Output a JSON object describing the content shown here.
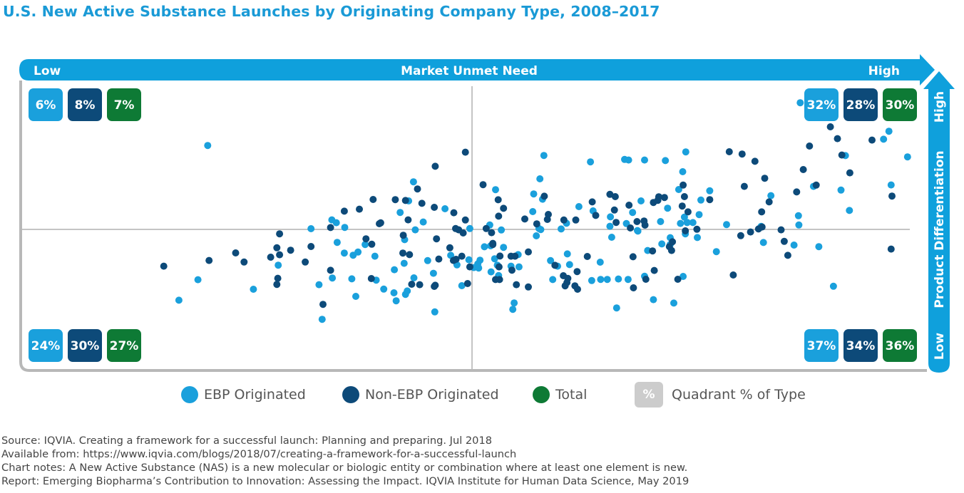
{
  "title": "U.S. New Active Substance Launches by Originating Company Type, 2008–2017",
  "colors": {
    "ebp": "#1aa0dc",
    "non_ebp": "#0d4a79",
    "total": "#0e7a35",
    "arrow": "#0fa0dc",
    "frame": "#b8b8b8",
    "legend_box": "#cccccc"
  },
  "chart_data": {
    "type": "scatter",
    "xlabel": "Market Unmet Need",
    "ylabel": "Product Differentiation",
    "x_low_label": "Low",
    "x_high_label": "High",
    "y_low_label": "Low",
    "y_high_label": "High",
    "xlim": [
      -1,
      1
    ],
    "ylim": [
      -1,
      1
    ],
    "series": [
      {
        "name": "EBP Originated",
        "color": "#1aa0dc",
        "points": [
          [
            -0.596,
            0.589
          ],
          [
            -0.618,
            -0.353
          ],
          [
            -0.661,
            -0.497
          ],
          [
            -0.493,
            -0.42
          ],
          [
            -0.437,
            -0.251
          ],
          [
            -0.363,
            0.005
          ],
          [
            -0.345,
            -0.388
          ],
          [
            -0.338,
            -0.631
          ],
          [
            -0.315,
            -0.341
          ],
          [
            -0.304,
            -0.091
          ],
          [
            -0.316,
            0.067
          ],
          [
            -0.306,
            0.047
          ],
          [
            -0.257,
            -0.159
          ],
          [
            -0.268,
            -0.181
          ],
          [
            -0.287,
            0.014
          ],
          [
            -0.288,
            -0.166
          ],
          [
            -0.271,
            -0.347
          ],
          [
            -0.262,
            -0.47
          ],
          [
            -0.241,
            -0.106
          ],
          [
            -0.216,
            -0.356
          ],
          [
            -0.219,
            -0.188
          ],
          [
            -0.199,
            -0.419
          ],
          [
            -0.171,
            -0.501
          ],
          [
            -0.162,
            0.119
          ],
          [
            -0.175,
            -0.283
          ],
          [
            -0.176,
            -0.445
          ],
          [
            -0.153,
            -0.238
          ],
          [
            -0.15,
            -0.456
          ],
          [
            -0.143,
            0.2
          ],
          [
            -0.131,
            -0.34
          ],
          [
            -0.146,
            -0.432
          ],
          [
            -0.132,
            0.334
          ],
          [
            -0.1,
            -0.219
          ],
          [
            -0.11,
            0.052
          ],
          [
            -0.128,
            -0.003
          ],
          [
            -0.152,
            -0.072
          ],
          [
            -0.084,
            -0.579
          ],
          [
            -0.087,
            -0.308
          ],
          [
            -0.061,
            0.145
          ],
          [
            -0.048,
            -0.182
          ],
          [
            -0.034,
            -0.249
          ],
          [
            -0.023,
            -0.395
          ],
          [
            -0.007,
            -0.213
          ],
          [
            -0.005,
            0.006
          ],
          [
            0.004,
            -0.268
          ],
          [
            0.013,
            -0.242
          ],
          [
            0.015,
            -0.271
          ],
          [
            0.018,
            -0.216
          ],
          [
            0.028,
            -0.122
          ],
          [
            0.042,
            -0.115
          ],
          [
            0.053,
            0.279
          ],
          [
            0.043,
            -0.298
          ],
          [
            0.051,
            -0.206
          ],
          [
            0.057,
            -0.251
          ],
          [
            0.04,
            0.031
          ],
          [
            0.06,
            -0.324
          ],
          [
            0.071,
            -0.126
          ],
          [
            0.066,
            -0.004
          ],
          [
            0.088,
            -0.258
          ],
          [
            0.092,
            -0.561
          ],
          [
            0.095,
            -0.516
          ],
          [
            0.104,
            -0.177
          ],
          [
            0.106,
            -0.263
          ],
          [
            0.137,
            0.125
          ],
          [
            0.139,
            0.249
          ],
          [
            0.145,
            -0.045
          ],
          [
            0.151,
            0.006
          ],
          [
            0.153,
            0.355
          ],
          [
            0.155,
            -0.001
          ],
          [
            0.159,
            0.212
          ],
          [
            0.162,
            0.519
          ],
          [
            0.177,
            -0.219
          ],
          [
            0.182,
            -0.352
          ],
          [
            0.193,
            -0.258
          ],
          [
            0.201,
            0.003
          ],
          [
            0.213,
            0.043
          ],
          [
            0.215,
            -0.172
          ],
          [
            0.22,
            -0.247
          ],
          [
            0.241,
            0.16
          ],
          [
            0.27,
            -0.359
          ],
          [
            0.267,
            0.474
          ],
          [
            0.273,
            0.13
          ],
          [
            0.289,
            -0.23
          ],
          [
            0.29,
            -0.351
          ],
          [
            0.305,
            -0.351
          ],
          [
            0.311,
            0.022
          ],
          [
            0.312,
            0.088
          ],
          [
            0.315,
            -0.055
          ],
          [
            0.326,
            -0.551
          ],
          [
            0.33,
            -0.348
          ],
          [
            0.344,
            0.491
          ],
          [
            0.348,
            0.041
          ],
          [
            0.352,
            -0.351
          ],
          [
            0.353,
            0.487
          ],
          [
            0.362,
            0.119
          ],
          [
            0.373,
            -0.008
          ],
          [
            0.374,
            -0.012
          ],
          [
            0.381,
            0.2
          ],
          [
            0.389,
            -0.329
          ],
          [
            0.389,
            0.487
          ],
          [
            0.396,
            -0.148
          ],
          [
            0.409,
            -0.493
          ],
          [
            0.425,
            0.055
          ],
          [
            0.428,
            -0.102
          ],
          [
            0.436,
            0.483
          ],
          [
            0.447,
            -0.058
          ],
          [
            0.441,
            0.149
          ],
          [
            0.447,
            -0.106
          ],
          [
            0.455,
            -0.517
          ],
          [
            0.466,
            0.28
          ],
          [
            0.47,
            0.042
          ],
          [
            0.476,
            -0.33
          ],
          [
            0.481,
            -0.031
          ],
          [
            0.479,
            0.086
          ],
          [
            0.485,
            0.048
          ],
          [
            0.485,
            0.049
          ],
          [
            0.475,
            0.405
          ],
          [
            0.482,
            0.544
          ],
          [
            0.498,
            0.048
          ],
          [
            0.508,
            -0.057
          ],
          [
            0.512,
            0.104
          ],
          [
            0.516,
            0.206
          ],
          [
            0.536,
            0.271
          ],
          [
            0.551,
            -0.156
          ],
          [
            0.574,
            0.034
          ],
          [
            0.657,
            -0.092
          ],
          [
            0.652,
            0.021
          ],
          [
            0.674,
            0.237
          ],
          [
            0.726,
            -0.11
          ],
          [
            0.737,
            0.031
          ],
          [
            0.736,
            0.096
          ],
          [
            0.77,
            0.302
          ],
          [
            0.782,
            -0.121
          ],
          [
            0.815,
            -0.399
          ],
          [
            0.832,
            0.276
          ],
          [
            0.842,
            0.518
          ],
          [
            0.851,
            0.133
          ],
          [
            0.928,
            0.633
          ],
          [
            0.94,
            0.689
          ],
          [
            0.945,
            0.312
          ],
          [
            0.982,
            0.509
          ],
          [
            0.74,
            0.889
          ]
        ]
      },
      {
        "name": "Non-EBP Originated",
        "color": "#0d4a79",
        "points": [
          [
            -0.695,
            -0.258
          ],
          [
            -0.593,
            -0.218
          ],
          [
            -0.533,
            -0.165
          ],
          [
            -0.514,
            -0.229
          ],
          [
            -0.454,
            -0.195
          ],
          [
            -0.44,
            -0.129
          ],
          [
            -0.438,
            -0.343
          ],
          [
            -0.44,
            -0.386
          ],
          [
            -0.434,
            -0.178
          ],
          [
            -0.434,
            -0.031
          ],
          [
            -0.409,
            -0.146
          ],
          [
            -0.376,
            -0.229
          ],
          [
            -0.363,
            -0.12
          ],
          [
            -0.336,
            -0.526
          ],
          [
            -0.319,
            -0.287
          ],
          [
            -0.319,
            0.013
          ],
          [
            -0.288,
            0.128
          ],
          [
            -0.254,
            0.142
          ],
          [
            -0.239,
            -0.066
          ],
          [
            -0.227,
            -0.345
          ],
          [
            -0.226,
            -0.104
          ],
          [
            -0.223,
            0.21
          ],
          [
            -0.209,
            0.04
          ],
          [
            -0.206,
            0.046
          ],
          [
            -0.173,
            0.209
          ],
          [
            -0.155,
            -0.041
          ],
          [
            -0.156,
            -0.166
          ],
          [
            -0.15,
            0.203
          ],
          [
            -0.144,
            0.067
          ],
          [
            -0.141,
            -0.177
          ],
          [
            -0.136,
            -0.385
          ],
          [
            -0.123,
            0.284
          ],
          [
            -0.113,
            0.183
          ],
          [
            -0.118,
            -0.388
          ],
          [
            -0.08,
            -0.066
          ],
          [
            -0.083,
            -0.392
          ],
          [
            -0.085,
            0.155
          ],
          [
            -0.083,
            0.443
          ],
          [
            -0.085,
            -0.4
          ],
          [
            -0.075,
            -0.208
          ],
          [
            -0.05,
            -0.129
          ],
          [
            -0.041,
            0.117
          ],
          [
            -0.042,
            -0.218
          ],
          [
            -0.03,
            -0.003
          ],
          [
            -0.02,
            -0.025
          ],
          [
            -0.036,
            -0.21
          ],
          [
            -0.015,
            0.542
          ],
          [
            -0.015,
            0.066
          ],
          [
            -0.005,
            -0.263
          ],
          [
            -0.01,
            -0.38
          ],
          [
            -0.023,
            -0.188
          ],
          [
            -0.037,
            0.006
          ],
          [
            0.025,
            0.314
          ],
          [
            0.032,
            0.006
          ],
          [
            0.044,
            -0.023
          ],
          [
            0.047,
            -0.098
          ],
          [
            0.047,
            -0.106
          ],
          [
            0.063,
            -0.187
          ],
          [
            0.062,
            -0.352
          ],
          [
            0.059,
            0.208
          ],
          [
            0.061,
            -0.263
          ],
          [
            0.053,
            -0.352
          ],
          [
            0.06,
            0.093
          ],
          [
            0.071,
            0.148
          ],
          [
            0.088,
            -0.188
          ],
          [
            0.097,
            -0.188
          ],
          [
            0.09,
            -0.286
          ],
          [
            0.1,
            -0.388
          ],
          [
            0.119,
            0.073
          ],
          [
            0.127,
            -0.404
          ],
          [
            0.127,
            -0.158
          ],
          [
            0.146,
            0.039
          ],
          [
            0.163,
            0.233
          ],
          [
            0.17,
            0.07
          ],
          [
            0.172,
            0.105
          ],
          [
            0.187,
            -0.252
          ],
          [
            0.207,
            0.066
          ],
          [
            0.206,
            -0.325
          ],
          [
            0.21,
            -0.396
          ],
          [
            0.216,
            -0.344
          ],
          [
            0.214,
            -0.373
          ],
          [
            0.232,
            -0.396
          ],
          [
            0.234,
            0.066
          ],
          [
            0.237,
            -0.296
          ],
          [
            0.238,
            -0.42
          ],
          [
            0.26,
            -0.19
          ],
          [
            0.271,
            0.193
          ],
          [
            0.279,
            0.098
          ],
          [
            0.311,
            0.246
          ],
          [
            0.321,
            0.136
          ],
          [
            0.323,
            0.23
          ],
          [
            0.325,
            0.049
          ],
          [
            0.354,
            0.17
          ],
          [
            0.357,
            0.01
          ],
          [
            0.363,
            -0.192
          ],
          [
            0.364,
            -0.41
          ],
          [
            0.372,
            0.055
          ],
          [
            0.388,
            0.059
          ],
          [
            0.39,
            0.03
          ],
          [
            0.392,
            -0.35
          ],
          [
            0.407,
            -0.151
          ],
          [
            0.409,
            0.189
          ],
          [
            0.411,
            -0.288
          ],
          [
            0.419,
            0.204
          ],
          [
            0.421,
            0.229
          ],
          [
            0.434,
            0.224
          ],
          [
            0.445,
            -0.121
          ],
          [
            0.45,
            -0.148
          ],
          [
            0.452,
            -0.087
          ],
          [
            0.464,
            -0.35
          ],
          [
            0.481,
            -0.01
          ],
          [
            0.479,
            0.23
          ],
          [
            0.476,
            0.311
          ],
          [
            0.474,
            0.164
          ],
          [
            0.487,
            0.123
          ],
          [
            0.507,
            0.001
          ],
          [
            0.536,
            0.209
          ],
          [
            0.58,
            0.545
          ],
          [
            0.609,
            0.529
          ],
          [
            0.589,
            -0.32
          ],
          [
            0.606,
            -0.044
          ],
          [
            0.614,
            0.302
          ],
          [
            0.628,
            -0.018
          ],
          [
            0.638,
            0.478
          ],
          [
            0.646,
            0.003
          ],
          [
            0.653,
            0.123
          ],
          [
            0.654,
            0.017
          ],
          [
            0.66,
            0.359
          ],
          [
            0.67,
            0.193
          ],
          [
            0.697,
            -0.003
          ],
          [
            0.704,
            -0.084
          ],
          [
            0.712,
            -0.182
          ],
          [
            0.732,
            0.263
          ],
          [
            0.747,
            0.42
          ],
          [
            0.761,
            0.585
          ],
          [
            0.776,
            0.311
          ],
          [
            0.834,
            0.522
          ],
          [
            0.824,
            0.637
          ],
          [
            0.808,
            0.72
          ],
          [
            0.902,
            0.627
          ],
          [
            0.947,
            0.234
          ],
          [
            0.945,
            -0.138
          ],
          [
            0.852,
            0.397
          ]
        ]
      }
    ],
    "quadrants": [
      {
        "position": "top-left",
        "EBP Originated": "6%",
        "Non-EBP Originated": "8%",
        "Total": "7%"
      },
      {
        "position": "top-right",
        "EBP Originated": "32%",
        "Non-EBP Originated": "28%",
        "Total": "30%"
      },
      {
        "position": "bottom-left",
        "EBP Originated": "24%",
        "Non-EBP Originated": "30%",
        "Total": "27%"
      },
      {
        "position": "bottom-right",
        "EBP Originated": "37%",
        "Non-EBP Originated": "34%",
        "Total": "36%"
      }
    ]
  },
  "legend": {
    "ebp": "EBP Originated",
    "non_ebp": "Non-EBP Originated",
    "total": "Total",
    "quadrant_symbol": "%",
    "quadrant": "Quadrant % of Type"
  },
  "notes": {
    "source": "Source: IQVIA. Creating a framework for a successful launch: Planning and preparing. Jul 2018",
    "available": "Available from: https://www.iqvia.com/blogs/2018/07/creating-a-framework-for-a-successful-launch",
    "chart_notes": "Chart notes: A New Active Substance (NAS) is a new molecular or biologic entity or combination where at least one element is new.",
    "report": "Report: Emerging Biopharma’s Contribution to Innovation: Assessing the Impact. IQVIA Institute for Human Data Science, May 2019"
  }
}
